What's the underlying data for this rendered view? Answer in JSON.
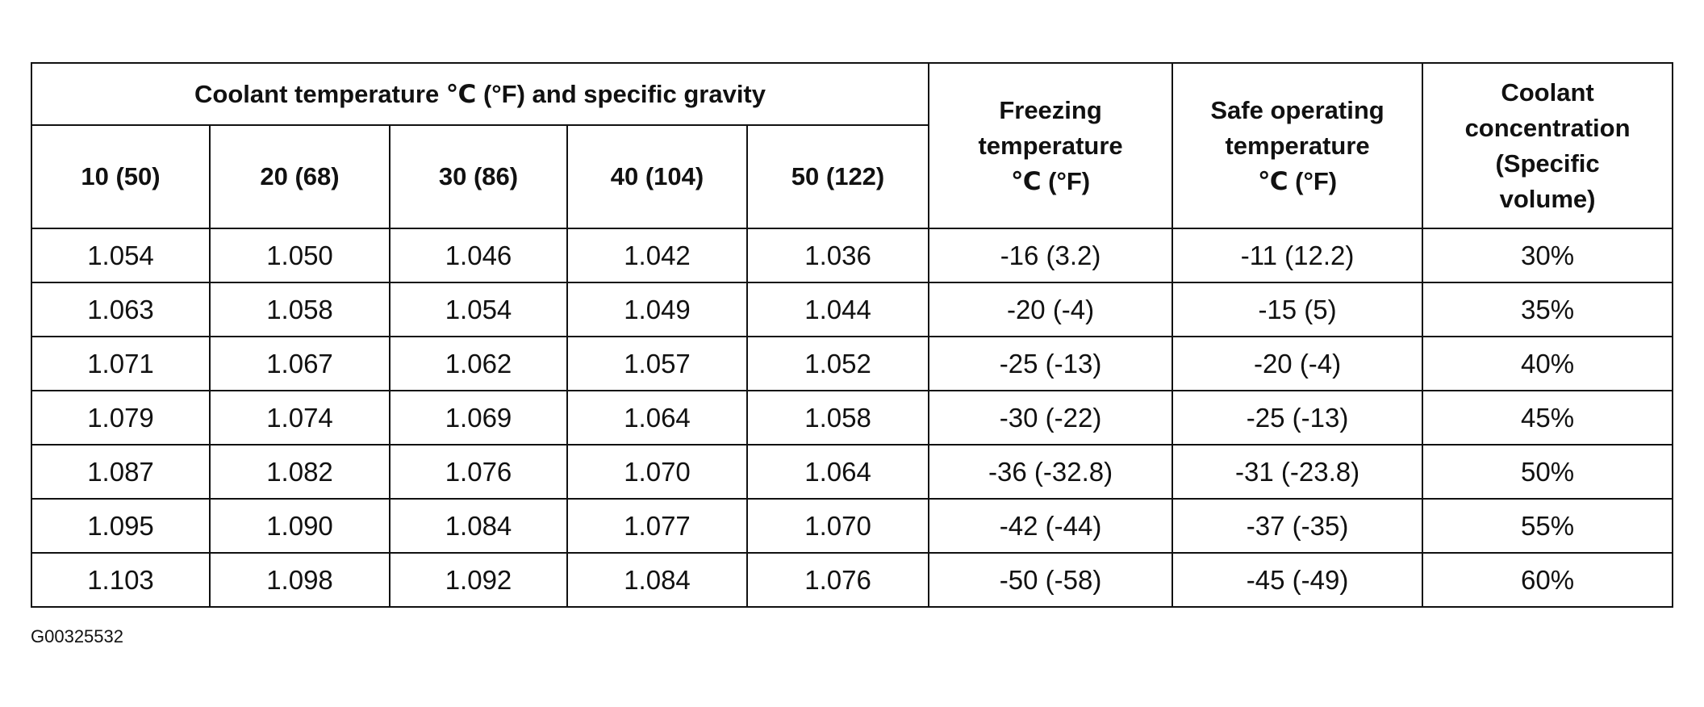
{
  "header": {
    "group_title": "Coolant temperature ℃ (°F) and specific gravity",
    "columns": [
      "10 (50)",
      "20 (68)",
      "30 (86)",
      "40 (104)",
      "50 (122)"
    ],
    "freezing": [
      "Freezing",
      "temperature",
      "℃ (°F)"
    ],
    "safe": [
      "Safe operating",
      "temperature",
      "℃ (°F)"
    ],
    "concentration": [
      "Coolant",
      "concentration",
      "(Specific",
      "volume)"
    ]
  },
  "table": {
    "rows": [
      [
        "1.054",
        "1.050",
        "1.046",
        "1.042",
        "1.036",
        "-16 (3.2)",
        "-11 (12.2)",
        "30%"
      ],
      [
        "1.063",
        "1.058",
        "1.054",
        "1.049",
        "1.044",
        "-20 (-4)",
        "-15 (5)",
        "35%"
      ],
      [
        "1.071",
        "1.067",
        "1.062",
        "1.057",
        "1.052",
        "-25 (-13)",
        "-20 (-4)",
        "40%"
      ],
      [
        "1.079",
        "1.074",
        "1.069",
        "1.064",
        "1.058",
        "-30 (-22)",
        "-25 (-13)",
        "45%"
      ],
      [
        "1.087",
        "1.082",
        "1.076",
        "1.070",
        "1.064",
        "-36 (-32.8)",
        "-31 (-23.8)",
        "50%"
      ],
      [
        "1.095",
        "1.090",
        "1.084",
        "1.077",
        "1.070",
        "-42 (-44)",
        "-37 (-35)",
        "55%"
      ],
      [
        "1.103",
        "1.098",
        "1.092",
        "1.084",
        "1.076",
        "-50 (-58)",
        "-45 (-49)",
        "60%"
      ]
    ]
  },
  "footer": {
    "code": "G00325532"
  }
}
